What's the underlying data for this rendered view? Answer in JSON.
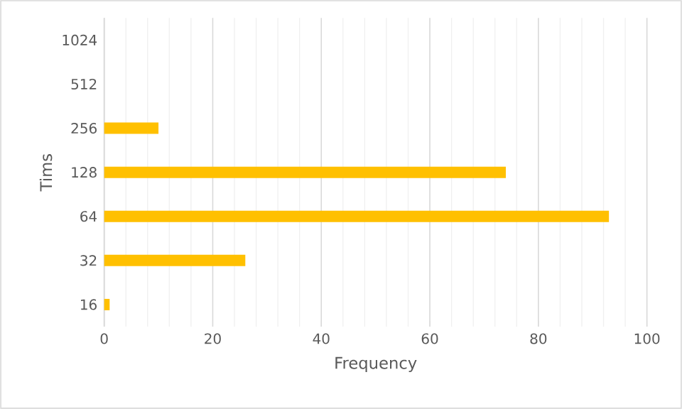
{
  "chart_data": {
    "type": "bar",
    "orientation": "horizontal",
    "xlabel": "Frequency",
    "ylabel": "Tims",
    "categories": [
      "1024",
      "512",
      "256",
      "128",
      "64",
      "32",
      "16"
    ],
    "values": [
      0,
      0,
      10,
      74,
      93,
      26,
      1
    ],
    "color": "#ffc000",
    "xlim": [
      0,
      100
    ],
    "xticks": [
      0,
      {
        "value": 4,
        "label": null
      },
      {
        "value": 8,
        "label": null
      },
      {
        "value": 12,
        "label": null
      },
      {
        "value": 16,
        "label": null
      },
      20,
      {
        "value": 24,
        "label": null
      },
      {
        "value": 28,
        "label": null
      },
      {
        "value": 32,
        "label": null
      },
      {
        "value": 36,
        "label": null
      },
      40,
      {
        "value": 44,
        "label": null
      },
      {
        "value": 48,
        "label": null
      },
      {
        "value": 52,
        "label": null
      },
      {
        "value": 56,
        "label": null
      },
      60,
      {
        "value": 64,
        "label": null
      },
      {
        "value": 68,
        "label": null
      },
      {
        "value": 72,
        "label": null
      },
      {
        "value": 76,
        "label": null
      },
      80,
      {
        "value": 84,
        "label": null
      },
      {
        "value": 88,
        "label": null
      },
      {
        "value": 92,
        "label": null
      },
      {
        "value": 96,
        "label": null
      },
      100
    ],
    "grid": "x"
  }
}
